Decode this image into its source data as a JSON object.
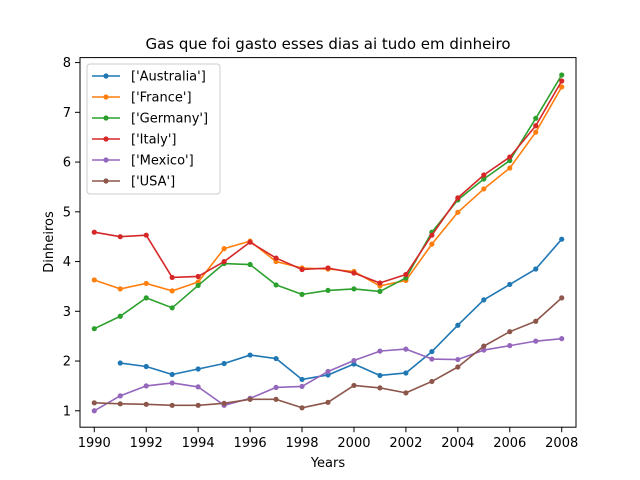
{
  "chart_data": {
    "type": "line",
    "title": "Gas que foi gasto esses dias ai tudo em dinheiro",
    "xlabel": "Years",
    "ylabel": "Dinheiros",
    "xlim": [
      1989.45,
      2008.55
    ],
    "ylim": [
      0.67,
      8.1
    ],
    "xticks": [
      1990,
      1992,
      1994,
      1996,
      1998,
      2000,
      2002,
      2004,
      2006,
      2008
    ],
    "yticks": [
      1,
      2,
      3,
      4,
      5,
      6,
      7,
      8
    ],
    "legend_position": "upper-left",
    "grid": false,
    "x": [
      1990,
      1991,
      1992,
      1993,
      1994,
      1995,
      1996,
      1997,
      1998,
      1999,
      2000,
      2001,
      2002,
      2003,
      2004,
      2005,
      2006,
      2007,
      2008
    ],
    "series": [
      {
        "name": "['Australia']",
        "color": "#1f77b4",
        "values": [
          null,
          1.96,
          1.89,
          1.73,
          1.84,
          1.95,
          2.12,
          2.05,
          1.63,
          1.72,
          1.94,
          1.71,
          1.76,
          2.19,
          2.72,
          3.23,
          3.54,
          3.85,
          4.45
        ]
      },
      {
        "name": "['France']",
        "color": "#ff7f0e",
        "values": [
          3.63,
          3.45,
          3.56,
          3.41,
          3.59,
          4.26,
          4.41,
          4.0,
          3.87,
          3.85,
          3.8,
          3.51,
          3.62,
          4.35,
          4.99,
          5.46,
          5.88,
          6.6,
          7.51
        ]
      },
      {
        "name": "['Germany']",
        "color": "#2ca02c",
        "values": [
          2.65,
          2.9,
          3.27,
          3.07,
          3.52,
          3.96,
          3.94,
          3.53,
          3.34,
          3.42,
          3.45,
          3.4,
          3.67,
          4.59,
          5.24,
          5.66,
          6.03,
          6.88,
          7.75
        ]
      },
      {
        "name": "['Italy']",
        "color": "#d62728",
        "values": [
          4.59,
          4.5,
          4.53,
          3.68,
          3.7,
          4.0,
          4.39,
          4.07,
          3.84,
          3.87,
          3.77,
          3.57,
          3.74,
          4.53,
          5.28,
          5.74,
          6.1,
          6.73,
          7.63
        ]
      },
      {
        "name": "['Mexico']",
        "color": "#9467bd",
        "values": [
          1.0,
          1.3,
          1.5,
          1.56,
          1.48,
          1.11,
          1.25,
          1.47,
          1.49,
          1.79,
          2.01,
          2.2,
          2.24,
          2.04,
          2.03,
          2.22,
          2.31,
          2.4,
          2.45
        ]
      },
      {
        "name": "['USA']",
        "color": "#8c564b",
        "values": [
          1.16,
          1.14,
          1.13,
          1.11,
          1.11,
          1.15,
          1.23,
          1.23,
          1.06,
          1.17,
          1.51,
          1.46,
          1.36,
          1.59,
          1.88,
          2.3,
          2.59,
          2.8,
          3.27
        ]
      }
    ]
  }
}
